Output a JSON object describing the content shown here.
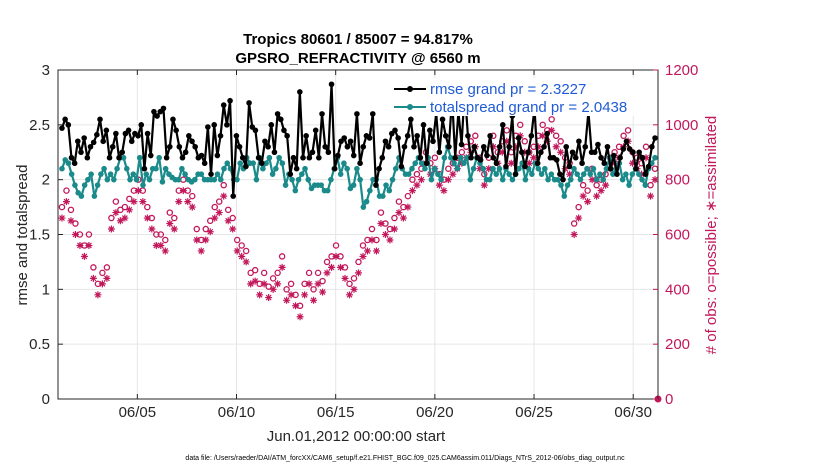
{
  "chart_data": {
    "type": "line",
    "title": "Tropics 80601 / 85007 = 94.817%",
    "subtitle": "GPSRO_REFRACTIVITY @ 6560 m",
    "xlabel": "Jun.01,2012 00:00:00 start",
    "ylabel": "rmse and totalspread",
    "y2label": "# of obs: o=possible; ∗=assimilated",
    "xlim": [
      1,
      31.25
    ],
    "ylim": [
      0,
      3
    ],
    "y2lim": [
      0,
      1200
    ],
    "x_ticks": [
      5,
      10,
      15,
      20,
      25,
      30
    ],
    "x_tick_labels": [
      "06/05",
      "06/10",
      "06/15",
      "06/20",
      "06/25",
      "06/30"
    ],
    "y_ticks": [
      0,
      0.5,
      1,
      1.5,
      2,
      2.5,
      3
    ],
    "y_tick_labels": [
      "0",
      "0.5",
      "1",
      "1.5",
      "2",
      "2.5",
      "3"
    ],
    "y2_ticks": [
      0,
      200,
      400,
      600,
      800,
      1000,
      1200
    ],
    "y2_tick_labels": [
      "0",
      "200",
      "400",
      "600",
      "800",
      "1000",
      "1200"
    ],
    "legend_position": "top-right",
    "series": [
      {
        "name": "rmse",
        "legend_label": "rmse grand pr = 2.3227",
        "color": "#000000",
        "axis": "left",
        "marker": "dot",
        "values": [
          2.47,
          2.55,
          2.5,
          2.2,
          2.15,
          2.35,
          2.25,
          2.38,
          2.2,
          2.3,
          2.34,
          2.41,
          2.55,
          2.35,
          2.45,
          2.2,
          2.3,
          2.42,
          2.2,
          2.25,
          2.42,
          2.45,
          2.35,
          2.42,
          2.4,
          2.5,
          2.1,
          2.42,
          2.22,
          2.62,
          2.58,
          2.62,
          2.65,
          2.2,
          2.3,
          2.55,
          2.45,
          2.3,
          2.2,
          2.25,
          2.4,
          2.35,
          2.3,
          2.2,
          2.22,
          2.15,
          2.48,
          2.05,
          2.5,
          2.22,
          2.4,
          2.68,
          2.5,
          2.72,
          1.85,
          2.4,
          2.3,
          2.2,
          2.12,
          2.7,
          2.48,
          2.45,
          2.2,
          2.15,
          2.35,
          2.3,
          2.5,
          2.25,
          2.6,
          2.55,
          2.45,
          2.4,
          2.05,
          2.2,
          2.1,
          2.8,
          2.2,
          2.4,
          2.2,
          2.25,
          2.45,
          2.2,
          2.6,
          2.3,
          2.25,
          2.87,
          2.1,
          2.22,
          2.35,
          2.38,
          2.3,
          2.35,
          2.22,
          2.6,
          2.15,
          2.3,
          2.4,
          2.38,
          2.6,
          1.95,
          2.1,
          2.2,
          2.35,
          2.3,
          2.42,
          2.45,
          2.38,
          2.12,
          2.3,
          2.4,
          2.55,
          2.3,
          2.4,
          2.2,
          2.5,
          2.15,
          2.45,
          2.35,
          2.6,
          2.25,
          2.55,
          2.4,
          2.3,
          2.75,
          2.2,
          2.62,
          2.32,
          2.82,
          2.4,
          2.2,
          2.3,
          2.2,
          2.18,
          2.3,
          2.22,
          2.4,
          2.2,
          2.15,
          2.3,
          2.5,
          2.12,
          2.3,
          2.58,
          2.05,
          2.38,
          2.25,
          2.12,
          2.25,
          2.4,
          2.65,
          2.15,
          2.25,
          2.3,
          2.42,
          2.2,
          2.2,
          2.18,
          2.05,
          2.0,
          2.3,
          2.12,
          2.25,
          2.2,
          2.35,
          2.15,
          2.3,
          2.62,
          2.25,
          2.25,
          2.32,
          2.2,
          2.15,
          2.3,
          2.1,
          2.22,
          2.05,
          2.2,
          2.28,
          2.35,
          2.28,
          2.25,
          2.1,
          2.25,
          2.2,
          2.05,
          2.12,
          2.3,
          2.38
        ]
      },
      {
        "name": "totalspread",
        "legend_label": "totalspread grand pr = 2.0438",
        "color": "#1a8a8a",
        "axis": "left",
        "marker": "dot",
        "values": [
          2.1,
          2.18,
          2.15,
          2.05,
          1.95,
          1.88,
          1.85,
          1.95,
          2.0,
          2.05,
          1.85,
          1.95,
          2.05,
          2.1,
          2.0,
          2.05,
          2.0,
          2.1,
          2.2,
          2.2,
          2.1,
          2.0,
          2.05,
          2.0,
          2.2,
          1.95,
          2.05,
          2.0,
          2.1,
          2.1,
          2.2,
          1.98,
          2.1,
          2.05,
          2.02,
          2.0,
          2.0,
          2.1,
          2.05,
          2.0,
          1.98,
          2.0,
          2.05,
          2.05,
          2.0,
          2.0,
          2.0,
          2.0,
          2.05,
          2.0,
          2.1,
          2.15,
          2.1,
          2.0,
          2.0,
          2.15,
          2.1,
          2.2,
          2.15,
          2.15,
          2.0,
          2.2,
          2.1,
          2.15,
          2.2,
          2.05,
          2.1,
          2.2,
          2.15,
          1.95,
          2.05,
          2.0,
          1.9,
          2.0,
          2.05,
          2.1,
          2.0,
          1.92,
          1.95,
          1.95,
          1.95,
          1.9,
          1.9,
          2.0,
          2.1,
          2.2,
          2.05,
          2.15,
          2.1,
          1.92,
          1.95,
          2.1,
          2.0,
          1.75,
          1.8,
          1.9,
          2.0,
          2.0,
          1.85,
          1.85,
          1.95,
          1.9,
          2.0,
          2.1,
          2.2,
          2.1,
          2.05,
          2.05,
          2.1,
          2.15,
          2.2,
          2.15,
          2.1,
          2.2,
          2.0,
          2.1,
          2.05,
          2.0,
          2.2,
          2.3,
          2.2,
          2.15,
          2.1,
          2.2,
          2.15,
          2.2,
          2.0,
          2.1,
          2.2,
          2.15,
          2.1,
          2.0,
          2.0,
          2.1,
          2.05,
          2.1,
          2.0,
          2.1,
          2.05,
          2.0,
          2.05,
          2.1,
          2.15,
          2.0,
          2.1,
          2.05,
          2.15,
          2.1,
          2.05,
          2.1,
          2.0,
          2.05,
          2.0,
          2.0,
          1.95,
          1.85,
          1.95,
          2.0,
          2.1,
          2.05,
          2.0,
          2.05,
          2.1,
          2.05,
          2.1,
          2.0,
          2.05,
          2.0,
          2.1,
          2.2,
          2.05,
          2.1,
          2.15,
          2.0,
          2.05,
          1.95,
          2.05,
          2.1,
          2.05,
          2.0,
          1.95,
          2.1,
          2.15,
          2.2
        ]
      },
      {
        "name": "possible",
        "axis": "right",
        "marker": "o",
        "color": "#c2185b",
        "values": [
          700,
          760,
          690,
          640,
          600,
          560,
          600,
          480,
          420,
          460,
          480,
          660,
          720,
          690,
          700,
          730,
          760,
          800,
          760,
          700,
          660,
          600,
          600,
          580,
          680,
          660,
          760,
          800,
          760,
          740,
          620,
          580,
          620,
          650,
          700,
          720,
          780,
          690,
          660,
          580,
          560,
          540,
          460,
          470,
          420,
          460,
          410,
          440,
          460,
          520,
          400,
          420,
          380,
          340,
          420,
          460,
          400,
          460,
          430,
          500,
          520,
          560,
          520,
          480,
          420,
          440,
          500,
          560,
          580,
          620,
          580,
          680,
          640,
          620,
          660,
          720,
          700,
          740,
          800,
          820,
          840,
          900,
          860,
          880,
          820,
          800,
          840,
          860,
          880,
          900,
          920,
          940,
          960,
          880,
          820,
          880,
          960,
          900,
          940,
          980,
          900,
          960,
          1000,
          940,
          900,
          920,
          960,
          1000,
          980,
          1020,
          960,
          940,
          880,
          860,
          640,
          700,
          780,
          760,
          840,
          780,
          800,
          820,
          880,
          900,
          920,
          960,
          980,
          900,
          880,
          860,
          920,
          780,
          840
        ]
      },
      {
        "name": "assimilated",
        "axis": "right",
        "marker": "*",
        "color": "#c2185b",
        "values": [
          660,
          720,
          650,
          600,
          560,
          520,
          560,
          440,
          380,
          420,
          440,
          620,
          680,
          650,
          660,
          690,
          720,
          760,
          720,
          660,
          620,
          560,
          560,
          540,
          640,
          620,
          720,
          760,
          720,
          700,
          580,
          540,
          580,
          610,
          660,
          680,
          740,
          650,
          620,
          540,
          520,
          500,
          420,
          430,
          380,
          420,
          370,
          400,
          420,
          480,
          360,
          380,
          340,
          300,
          380,
          420,
          360,
          420,
          390,
          460,
          480,
          520,
          480,
          440,
          380,
          400,
          460,
          520,
          540,
          580,
          540,
          640,
          600,
          580,
          620,
          680,
          660,
          700,
          760,
          780,
          800,
          860,
          820,
          840,
          780,
          760,
          800,
          820,
          840,
          860,
          880,
          900,
          920,
          840,
          780,
          840,
          920,
          860,
          900,
          940,
          860,
          920,
          960,
          900,
          860,
          880,
          920,
          960,
          940,
          980,
          920,
          900,
          840,
          820,
          600,
          660,
          740,
          720,
          800,
          740,
          760,
          780,
          840,
          860,
          880,
          920,
          940,
          860,
          840,
          820,
          880,
          740,
          800
        ]
      }
    ]
  },
  "footer": "data file: /Users/raeder/DAI/ATM_forcXX/CAM6_setup/f.e21.FHIST_BGC.f09_025.CAM6assim.011/Diags_NTrS_2012-06/obs_diag_output.nc"
}
